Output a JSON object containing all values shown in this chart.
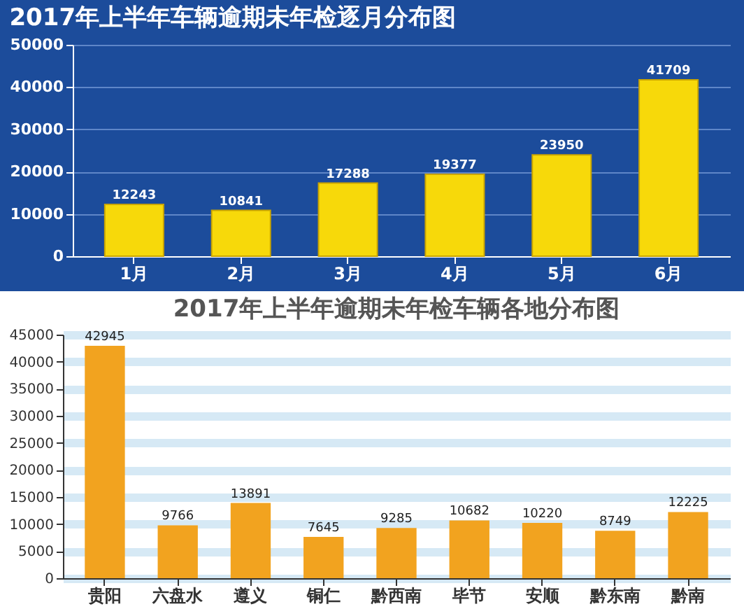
{
  "chart_data": [
    {
      "type": "bar",
      "title": "2017年上半年车辆逾期未年检逐月分布图",
      "categories": [
        "1月",
        "2月",
        "3月",
        "4月",
        "5月",
        "6月"
      ],
      "values": [
        12243,
        10841,
        17288,
        19377,
        23950,
        41709
      ],
      "color": "#f7d90a",
      "ylim": [
        0,
        50000
      ],
      "yticks": [
        0,
        10000,
        20000,
        30000,
        40000,
        50000
      ],
      "grid": "y",
      "data_labels": true
    },
    {
      "type": "bar",
      "title": "2017年上半年逾期未年检车辆各地分布图",
      "categories": [
        "贵阳",
        "六盘水",
        "遵义",
        "铜仁",
        "黔西南",
        "毕节",
        "安顺",
        "黔东南",
        "黔南"
      ],
      "values": [
        42945,
        9766,
        13891,
        7645,
        9285,
        10682,
        10220,
        8749,
        12225
      ],
      "color": "#f2a31f",
      "ylim": [
        0,
        45000
      ],
      "yticks": [
        0,
        5000,
        10000,
        15000,
        20000,
        25000,
        30000,
        35000,
        40000,
        45000
      ],
      "grid": "y",
      "data_labels": true
    }
  ]
}
